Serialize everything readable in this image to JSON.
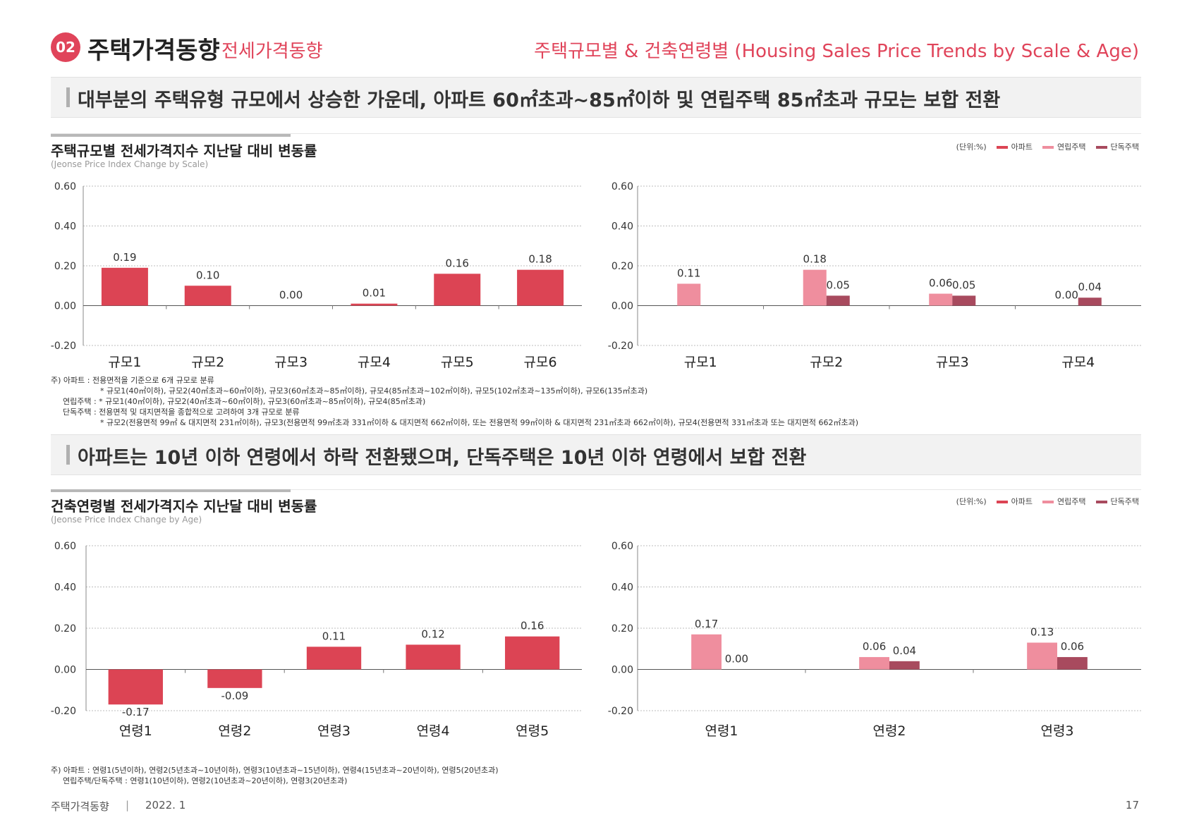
{
  "header": {
    "badge": "02",
    "title": "주택가격동향",
    "subtitle": "전세가격동향",
    "right_title": "주택규모별 & 건축연령별 (Housing Sales Price Trends by Scale & Age)"
  },
  "banner1": "대부분의 주택유형 규모에서 상승한 가운데, 아파트 60㎡초과~85㎡이하 및 연립주택 85㎡초과 규모는 보합 전환",
  "banner2": "아파트는 10년 이하 연령에서 하락 전환됐으며, 단독주택은 10년 이하 연령에서 보합 전환",
  "section1": {
    "title": "주택규모별 전세가격지수 지난달 대비 변동률",
    "subtitle": "(Jeonse Price Index Change by Scale)"
  },
  "section2": {
    "title": "건축연령별 전세가격지수 지난달 대비 변동률",
    "subtitle": "(Jeonse Price Index Change by Age)"
  },
  "legend": {
    "unit": "(단위:%)",
    "items": [
      "아파트",
      "연립주택",
      "단독주택"
    ]
  },
  "colors": {
    "apt": "#dc4454",
    "row": "#ef8e9e",
    "det": "#a84a5e",
    "accent": "#e0445a"
  },
  "notes1": [
    "주) 아파트 : 전용면적을 기준으로 6개 규모로 분류",
    "* 규모1(40㎡이하), 규모2(40㎡초과~60㎡이하), 규모3(60㎡초과~85㎡이하), 규모4(85㎡초과~102㎡이하), 규모5(102㎡초과~135㎡이하), 규모6(135㎡초과)",
    "연립주택 : * 규모1(40㎡이하), 규모2(40㎡초과~60㎡이하), 규모3(60㎡초과~85㎡이하), 규모4(85㎡초과)",
    "단독주택 : 전용면적 및 대지면적을 종합적으로 고려하여 3개 규모로 분류",
    "* 규모2(전용면적 99㎡ & 대지면적 231㎡이하), 규모3(전용면적 99㎡초과 331㎡이하 & 대지면적 662㎡이하, 또는 전용면적 99㎡이하 & 대지면적 231㎡초과 662㎡이하), 규모4(전용면적 331㎡초과 또는 대지면적 662㎡초과)"
  ],
  "notes2": [
    "주) 아파트 : 연령1(5년이하), 연령2(5년초과~10년이하), 연령3(10년초과~15년이하), 연령4(15년초과~20년이하), 연령5(20년초과)",
    "연립주택/단독주택 : 연령1(10년이하), 연령2(10년초과~20년이하), 연령3(20년초과)"
  ],
  "footer": {
    "left": "주택가격동향",
    "sep": "|",
    "date": "2022. 1",
    "page": "17"
  },
  "chart_data": [
    {
      "type": "bar",
      "categories": [
        "규모1",
        "규모2",
        "규모3",
        "규모4",
        "규모5",
        "규모6"
      ],
      "series": [
        {
          "name": "아파트",
          "values": [
            0.19,
            0.1,
            0.0,
            0.01,
            0.16,
            0.18
          ]
        }
      ],
      "value_labels": [
        "0.19",
        "0.10",
        "0.00",
        "0.01",
        "0.16",
        "0.18"
      ],
      "yticks": [
        "0.60",
        "0.40",
        "0.20",
        "0.00",
        "-0.20"
      ],
      "ylim": [
        -0.2,
        0.6
      ]
    },
    {
      "type": "bar",
      "categories": [
        "규모1",
        "규모2",
        "규모3",
        "규모4"
      ],
      "series": [
        {
          "name": "연립주택",
          "values": [
            0.11,
            0.18,
            0.06,
            0.0
          ],
          "labels": [
            "0.11",
            "0.18",
            "0.06",
            "0.00"
          ]
        },
        {
          "name": "단독주택",
          "values": [
            null,
            0.05,
            0.05,
            0.04
          ],
          "labels": [
            null,
            "0.05",
            "0.05",
            "0.04"
          ]
        }
      ],
      "yticks": [
        "0.60",
        "0.40",
        "0.20",
        "0.00",
        "-0.20"
      ],
      "ylim": [
        -0.2,
        0.6
      ]
    },
    {
      "type": "bar",
      "categories": [
        "연령1",
        "연령2",
        "연령3",
        "연령4",
        "연령5"
      ],
      "series": [
        {
          "name": "아파트",
          "values": [
            -0.17,
            -0.09,
            0.11,
            0.12,
            0.16
          ]
        }
      ],
      "value_labels": [
        "-0.17",
        "-0.09",
        "0.11",
        "0.12",
        "0.16"
      ],
      "yticks": [
        "0.60",
        "0.40",
        "0.20",
        "0.00",
        "-0.20"
      ],
      "ylim": [
        -0.2,
        0.6
      ]
    },
    {
      "type": "bar",
      "categories": [
        "연령1",
        "연령2",
        "연령3"
      ],
      "series": [
        {
          "name": "연립주택",
          "values": [
            0.17,
            0.06,
            0.13
          ],
          "labels": [
            "0.17",
            "0.06",
            "0.13"
          ]
        },
        {
          "name": "단독주택",
          "values": [
            0.0,
            0.04,
            0.06
          ],
          "labels": [
            "0.00",
            "0.04",
            "0.06"
          ]
        }
      ],
      "yticks": [
        "0.60",
        "0.40",
        "0.20",
        "0.00",
        "-0.20"
      ],
      "ylim": [
        -0.2,
        0.6
      ]
    }
  ]
}
